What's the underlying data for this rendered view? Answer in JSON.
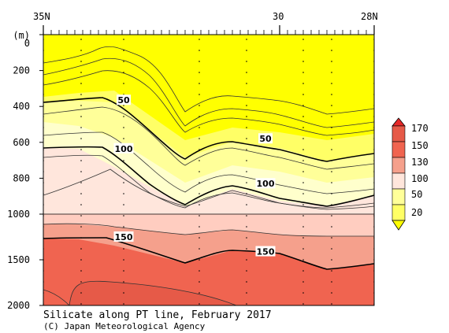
{
  "chart_data": {
    "type": "heatmap",
    "title": "Silicate along PT line, February 2017",
    "credit": "(C) Japan Meteorological Agency",
    "x_axis": {
      "ticks": [
        {
          "label": "35N",
          "lat": 35
        },
        {
          "label": "30",
          "lat": 30
        },
        {
          "label": "28N",
          "lat": 28
        }
      ],
      "range": [
        35,
        28
      ]
    },
    "y_axis": {
      "unit_label": "(m)",
      "ticks": [
        {
          "label": "0",
          "depth": 0
        },
        {
          "label": "200",
          "depth": 200
        },
        {
          "label": "400",
          "depth": 400
        },
        {
          "label": "600",
          "depth": 600
        },
        {
          "label": "800",
          "depth": 800
        },
        {
          "label": "1000",
          "depth": 1000
        },
        {
          "label": "1500",
          "depth": 1500
        },
        {
          "label": "2000",
          "depth": 2000
        }
      ],
      "range": [
        0,
        2000
      ],
      "note": "linear 0-1000 m, compressed 1000-2000 m"
    },
    "colorbar": {
      "labels": [
        "20",
        "50",
        "100",
        "130",
        "150",
        "170"
      ],
      "colors": [
        "#ffff00",
        "#ffff66",
        "#ffff99",
        "#ffffcc",
        "#ffe6dc",
        "#ffcdc0",
        "#f5a08c",
        "#f06450",
        "#e62828"
      ]
    },
    "station_lats": [
      35,
      34.2,
      33.3,
      31.7,
      30.7,
      29.5,
      28.9,
      28
    ],
    "contour_labels": [
      {
        "text": "50",
        "lat": 33.3,
        "depth": 365
      },
      {
        "text": "100",
        "lat": 33.3,
        "depth": 635
      },
      {
        "text": "150",
        "lat": 33.3,
        "depth": 1250
      },
      {
        "text": "50",
        "lat": 30.3,
        "depth": 580
      },
      {
        "text": "100",
        "lat": 30.3,
        "depth": 830
      },
      {
        "text": "150",
        "lat": 30.3,
        "depth": 1410
      }
    ]
  }
}
